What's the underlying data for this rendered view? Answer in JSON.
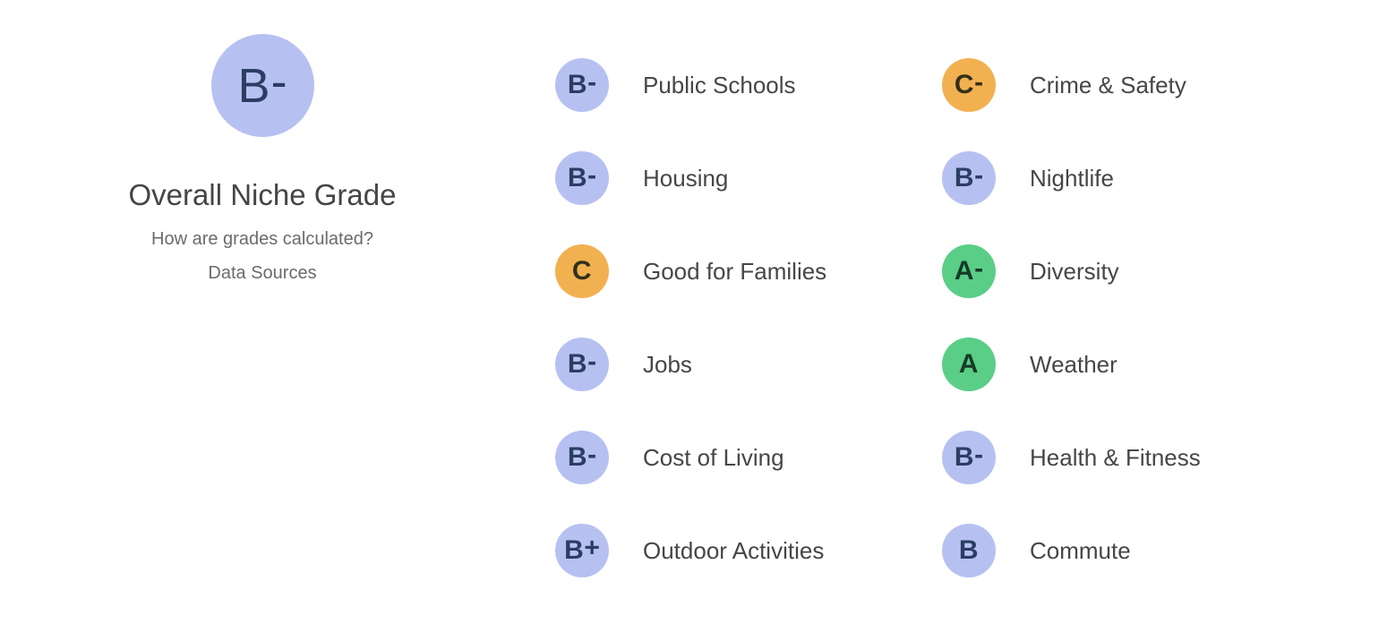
{
  "overall": {
    "grade": "B-",
    "title": "Overall Niche Grade",
    "links": [
      "How are grades calculated?",
      "Data Sources"
    ]
  },
  "columns": [
    {
      "items": [
        {
          "grade": "B-",
          "color": "blue",
          "label": "Public Schools"
        },
        {
          "grade": "B-",
          "color": "blue",
          "label": "Housing"
        },
        {
          "grade": "C",
          "color": "orange",
          "label": "Good for Families"
        },
        {
          "grade": "B-",
          "color": "blue",
          "label": "Jobs"
        },
        {
          "grade": "B-",
          "color": "blue",
          "label": "Cost of Living"
        },
        {
          "grade": "B+",
          "color": "blue",
          "label": "Outdoor Activities"
        }
      ]
    },
    {
      "items": [
        {
          "grade": "C-",
          "color": "orange",
          "label": "Crime & Safety"
        },
        {
          "grade": "B-",
          "color": "blue",
          "label": "Nightlife"
        },
        {
          "grade": "A-",
          "color": "green",
          "label": "Diversity"
        },
        {
          "grade": "A",
          "color": "green",
          "label": "Weather"
        },
        {
          "grade": "B-",
          "color": "blue",
          "label": "Health & Fitness"
        },
        {
          "grade": "B",
          "color": "blue",
          "label": "Commute"
        }
      ]
    }
  ],
  "colors": {
    "blue_bg": "#b7c1f1",
    "blue_text": "#2b3d63",
    "orange_bg": "#f2b150",
    "orange_text": "#33301c",
    "green_bg": "#5ace86",
    "green_text": "#163a28",
    "title_text": "#454545",
    "label_text": "#464646",
    "link_text": "#6b6b6b"
  }
}
